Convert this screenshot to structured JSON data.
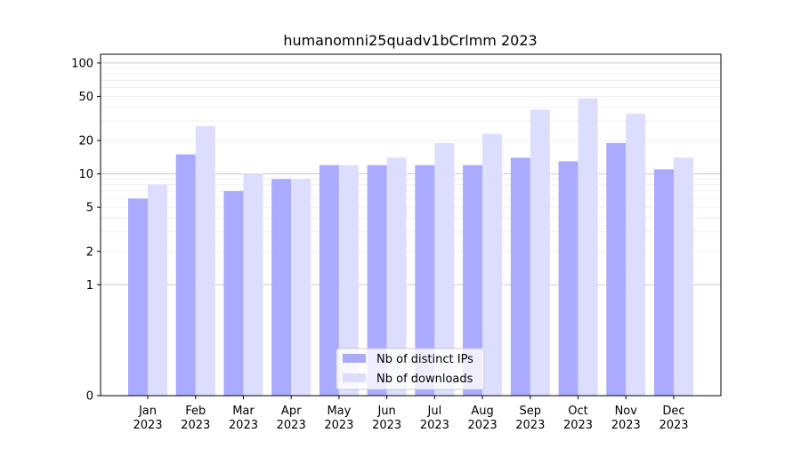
{
  "chart_data": {
    "type": "bar",
    "title": "humanomni25quadv1bCrlmm 2023",
    "categories": [
      "Jan\n2023",
      "Feb\n2023",
      "Mar\n2023",
      "Apr\n2023",
      "May\n2023",
      "Jun\n2023",
      "Jul\n2023",
      "Aug\n2023",
      "Sep\n2023",
      "Oct\n2023",
      "Nov\n2023",
      "Dec\n2023"
    ],
    "series": [
      {
        "name": "Nb of distinct IPs",
        "color": "#aaaaff",
        "values": [
          6,
          15,
          7,
          9,
          12,
          12,
          12,
          12,
          14,
          13,
          19,
          11
        ]
      },
      {
        "name": "Nb of downloads",
        "color": "#ddddff",
        "values": [
          8,
          27,
          10,
          9,
          12,
          14,
          19,
          23,
          38,
          48,
          35,
          14
        ]
      }
    ],
    "yscale": "symlog",
    "yticks": [
      0,
      1,
      2,
      5,
      10,
      20,
      50,
      100
    ],
    "ylim": [
      0,
      120
    ],
    "grid": true,
    "legend_position": "lower-center"
  }
}
